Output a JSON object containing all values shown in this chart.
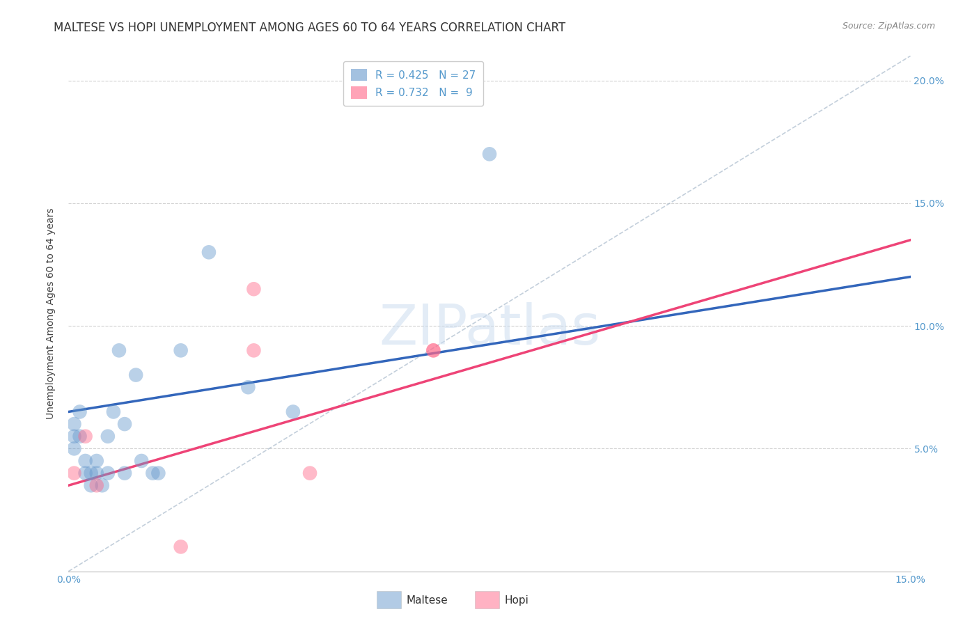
{
  "title": "MALTESE VS HOPI UNEMPLOYMENT AMONG AGES 60 TO 64 YEARS CORRELATION CHART",
  "source": "Source: ZipAtlas.com",
  "ylabel": "Unemployment Among Ages 60 to 64 years",
  "xlim": [
    0.0,
    0.15
  ],
  "ylim": [
    0.0,
    0.21
  ],
  "xticks": [
    0.0,
    0.025,
    0.05,
    0.075,
    0.1,
    0.125,
    0.15
  ],
  "yticks": [
    0.05,
    0.1,
    0.15,
    0.2
  ],
  "ytick_labels_right": [
    "5.0%",
    "10.0%",
    "15.0%",
    "20.0%"
  ],
  "xtick_labels": [
    "0.0%",
    "",
    "",
    "",
    "",
    "",
    "15.0%"
  ],
  "maltese_color": "#6699CC",
  "hopi_color": "#FF6688",
  "maltese_R": 0.425,
  "maltese_N": 27,
  "hopi_R": 0.732,
  "hopi_N": 9,
  "maltese_x": [
    0.001,
    0.001,
    0.001,
    0.002,
    0.002,
    0.003,
    0.003,
    0.004,
    0.004,
    0.005,
    0.005,
    0.006,
    0.007,
    0.007,
    0.008,
    0.009,
    0.01,
    0.01,
    0.012,
    0.013,
    0.015,
    0.016,
    0.02,
    0.025,
    0.032,
    0.04,
    0.075
  ],
  "maltese_y": [
    0.055,
    0.06,
    0.05,
    0.055,
    0.065,
    0.04,
    0.045,
    0.035,
    0.04,
    0.04,
    0.045,
    0.035,
    0.04,
    0.055,
    0.065,
    0.09,
    0.04,
    0.06,
    0.08,
    0.045,
    0.04,
    0.04,
    0.09,
    0.13,
    0.075,
    0.065,
    0.17
  ],
  "hopi_x": [
    0.001,
    0.003,
    0.005,
    0.02,
    0.033,
    0.033,
    0.043,
    0.065,
    0.065
  ],
  "hopi_y": [
    0.04,
    0.055,
    0.035,
    0.01,
    0.115,
    0.09,
    0.04,
    0.09,
    0.09
  ],
  "background_color": "#FFFFFF",
  "grid_color": "#CCCCCC",
  "watermark": "ZIPatlas",
  "title_fontsize": 12,
  "label_fontsize": 10,
  "tick_fontsize": 10,
  "legend_fontsize": 11
}
